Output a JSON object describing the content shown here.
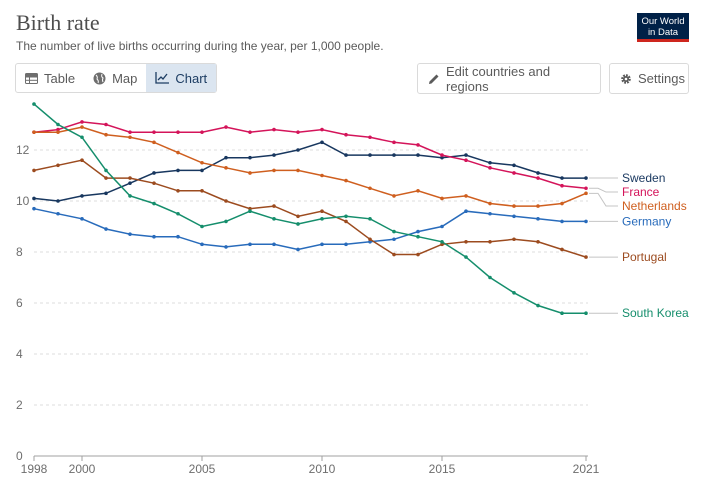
{
  "header": {
    "title": "Birth rate",
    "subtitle": "The number of live births occurring during the year, per 1,000 people.",
    "logo_line1": "Our World",
    "logo_line2": "in Data"
  },
  "tabs": [
    {
      "label": "Table",
      "icon": "table-icon",
      "active": false
    },
    {
      "label": "Map",
      "icon": "globe-icon",
      "active": false
    },
    {
      "label": "Chart",
      "icon": "line-chart-icon",
      "active": true
    }
  ],
  "toolbar": {
    "edit_label": "Edit countries and regions",
    "settings_label": "Settings"
  },
  "chart_data": {
    "type": "line",
    "title": "Birth rate",
    "subtitle": "The number of live births occurring during the year, per 1,000 people.",
    "x": [
      1998,
      1999,
      2000,
      2001,
      2002,
      2003,
      2004,
      2005,
      2006,
      2007,
      2008,
      2009,
      2010,
      2011,
      2012,
      2013,
      2014,
      2015,
      2016,
      2017,
      2018,
      2019,
      2020,
      2021
    ],
    "ylim": [
      0,
      14
    ],
    "yticks": [
      0,
      2,
      4,
      6,
      8,
      10,
      12
    ],
    "xticks": [
      1998,
      2000,
      2005,
      2010,
      2015,
      2021
    ],
    "grid": "horizontal-dashed",
    "legend": "right, inline labels at line ends",
    "series": [
      {
        "name": "Sweden",
        "color": "#18375f",
        "values": [
          10.1,
          10.0,
          10.2,
          10.3,
          10.7,
          11.1,
          11.2,
          11.2,
          11.7,
          11.7,
          11.8,
          12.0,
          12.3,
          11.8,
          11.8,
          11.8,
          11.8,
          11.7,
          11.8,
          11.5,
          11.4,
          11.1,
          10.9,
          10.9
        ]
      },
      {
        "name": "France",
        "color": "#d4145a",
        "values": [
          12.7,
          12.8,
          13.1,
          13.0,
          12.7,
          12.7,
          12.7,
          12.7,
          12.9,
          12.7,
          12.8,
          12.7,
          12.8,
          12.6,
          12.5,
          12.3,
          12.2,
          11.8,
          11.6,
          11.3,
          11.1,
          10.9,
          10.6,
          10.5
        ]
      },
      {
        "name": "Netherlands",
        "color": "#cf5f1f",
        "values": [
          12.7,
          12.7,
          12.9,
          12.6,
          12.5,
          12.3,
          11.9,
          11.5,
          11.3,
          11.1,
          11.2,
          11.2,
          11.0,
          10.8,
          10.5,
          10.2,
          10.4,
          10.1,
          10.2,
          9.9,
          9.8,
          9.8,
          9.9,
          10.3
        ]
      },
      {
        "name": "Germany",
        "color": "#286bbb",
        "values": [
          9.7,
          9.5,
          9.3,
          8.9,
          8.7,
          8.6,
          8.6,
          8.3,
          8.2,
          8.3,
          8.3,
          8.1,
          8.3,
          8.3,
          8.4,
          8.5,
          8.8,
          9.0,
          9.6,
          9.5,
          9.4,
          9.3,
          9.2,
          9.2
        ]
      },
      {
        "name": "Portugal",
        "color": "#9c4b1f",
        "values": [
          11.2,
          11.4,
          11.6,
          10.9,
          10.9,
          10.7,
          10.4,
          10.4,
          10.0,
          9.7,
          9.8,
          9.4,
          9.6,
          9.2,
          8.5,
          7.9,
          7.9,
          8.3,
          8.4,
          8.4,
          8.5,
          8.4,
          8.1,
          7.8
        ]
      },
      {
        "name": "South Korea",
        "color": "#158e6c",
        "values": [
          13.8,
          13.0,
          12.5,
          11.2,
          10.2,
          9.9,
          9.5,
          9.0,
          9.2,
          9.6,
          9.3,
          9.1,
          9.3,
          9.4,
          9.3,
          8.8,
          8.6,
          8.4,
          7.8,
          7.0,
          6.4,
          5.9,
          5.6,
          5.6
        ]
      }
    ]
  }
}
